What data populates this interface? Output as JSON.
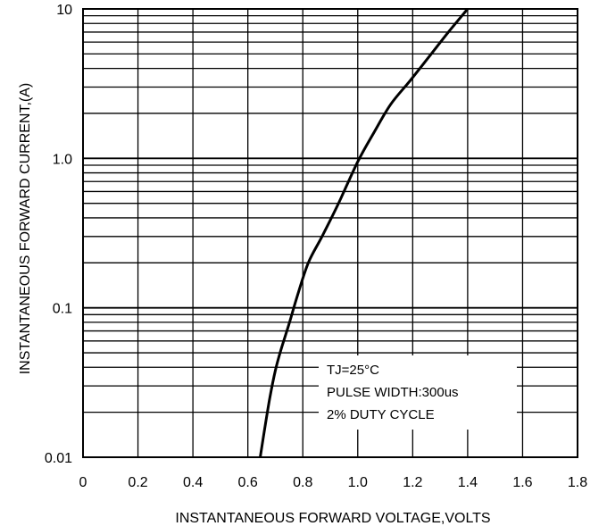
{
  "chart_data": {
    "type": "line",
    "x_scale": "linear",
    "y_scale": "log",
    "xlabel": "INSTANTANEOUS FORWARD VOLTAGE,VOLTS",
    "ylabel": "INSTANTANEOUS FORWARD CURRENT,(A)",
    "xlim": [
      0,
      1.8
    ],
    "ylim": [
      0.01,
      10
    ],
    "x_ticks": [
      "0",
      "0.2",
      "0.4",
      "0.6",
      "0.8",
      "1.0",
      "1.2",
      "1.4",
      "1.6",
      "1.8"
    ],
    "y_ticks": [
      "0.01",
      "0.1",
      "1.0",
      "10"
    ],
    "grid": true,
    "series": [
      {
        "x": [
          0.645,
          0.66,
          0.68,
          0.7,
          0.72,
          0.75,
          0.78,
          0.82,
          0.87,
          0.93,
          1.0,
          1.06,
          1.12,
          1.19,
          1.26,
          1.33,
          1.4
        ],
        "y": [
          0.01,
          0.015,
          0.025,
          0.038,
          0.052,
          0.078,
          0.12,
          0.2,
          0.3,
          0.5,
          0.95,
          1.5,
          2.3,
          3.3,
          4.8,
          7.0,
          10.0
        ]
      }
    ],
    "annotations": [
      "TJ=25°C",
      "PULSE WIDTH:300us",
      "2% DUTY CYCLE"
    ]
  }
}
